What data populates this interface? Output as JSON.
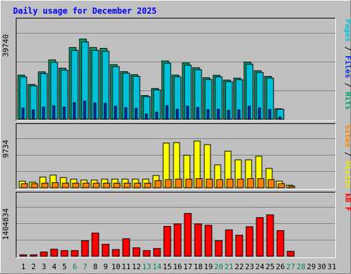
{
  "chart_data": {
    "type": "bar",
    "title": "Daily usage for December 2025",
    "days": [
      "1",
      "2",
      "3",
      "4",
      "5",
      "6",
      "7",
      "8",
      "9",
      "10",
      "11",
      "12",
      "13",
      "14",
      "15",
      "16",
      "17",
      "18",
      "19",
      "20",
      "21",
      "22",
      "23",
      "24",
      "25",
      "26",
      "27",
      "28",
      "29",
      "30",
      "31"
    ],
    "weekend_days": [
      "6",
      "7",
      "13",
      "14",
      "20",
      "21",
      "27",
      "28"
    ],
    "panels": [
      {
        "id": "hits",
        "ymax": 39740,
        "ymax_label": "39740",
        "legend": [
          {
            "text": "Pages",
            "color": "#00c0d8"
          },
          {
            "text": " / ",
            "color": "#000000"
          },
          {
            "text": "Files",
            "color": "#0030d8"
          },
          {
            "text": " / ",
            "color": "#000000"
          },
          {
            "text": "Hits",
            "color": "#00a070"
          }
        ],
        "series": [
          {
            "name": "Hits",
            "color": "#00a070",
            "values": [
              20300,
              16000,
              21800,
              27300,
              23500,
              33000,
              36900,
              33000,
              32600,
              25100,
              21900,
              20500,
              10900,
              14100,
              26800,
              20300,
              25900,
              23700,
              19100,
              20200,
              18000,
              18900,
              26300,
              22300,
              19700,
              4800
            ]
          },
          {
            "name": "Files",
            "color": "#0030d8",
            "values": [
              5200,
              4300,
              5600,
              6200,
              5600,
              7600,
              8300,
              7500,
              7300,
              6000,
              5300,
              5000,
              2400,
              3200,
              6200,
              4600,
              6000,
              5400,
              4400,
              4600,
              4100,
              4300,
              6000,
              5200,
              4500,
              1000
            ]
          },
          {
            "name": "Pages",
            "color": "#00c0d8",
            "values": [
              19500,
              15400,
              21000,
              26200,
              22600,
              31700,
              35600,
              31700,
              31300,
              24200,
              21200,
              19700,
              10400,
              13500,
              25800,
              19500,
              24900,
              22800,
              18300,
              19500,
              17300,
              18200,
              25300,
              21500,
              18900,
              4600
            ]
          }
        ]
      },
      {
        "id": "visits",
        "ymax": 9734,
        "ymax_label": "9734",
        "legend": [
          {
            "text": "Sites",
            "color": "#ff8000"
          },
          {
            "text": " / ",
            "color": "#000000"
          },
          {
            "text": "Visits",
            "color": "#e8e800"
          }
        ],
        "series": [
          {
            "name": "Visits",
            "color": "#ffff00",
            "values": [
              1300,
              1100,
              2100,
              2500,
              2000,
              1700,
              1500,
              1500,
              1700,
              1700,
              1700,
              1700,
              1700,
              2400,
              8800,
              8900,
              6400,
              9200,
              8500,
              4500,
              7200,
              5500,
              5500,
              6200,
              3800,
              1300,
              500
            ]
          },
          {
            "name": "Sites",
            "color": "#ff8000",
            "values": [
              800,
              800,
              900,
              1000,
              900,
              900,
              900,
              900,
              900,
              900,
              900,
              900,
              900,
              1400,
              1600,
              1700,
              1700,
              1800,
              1700,
              1600,
              1700,
              1700,
              1800,
              1800,
              1600,
              800,
              300
            ]
          }
        ]
      },
      {
        "id": "kbytes",
        "ymax": 1404834,
        "ymax_label": "1404834",
        "legend": [
          {
            "text": "kB F",
            "color": "#ff0000"
          }
        ],
        "series": [
          {
            "name": "kB F",
            "color": "#ff0000",
            "values": [
              40000,
              40000,
              120000,
              200000,
              160000,
              160000,
              440000,
              660000,
              340000,
              190000,
              500000,
              240000,
              160000,
              220000,
              850000,
              920000,
              1220000,
              920000,
              880000,
              440000,
              750000,
              600000,
              840000,
              1100000,
              1180000,
              730000,
              140000
            ]
          }
        ]
      }
    ]
  }
}
